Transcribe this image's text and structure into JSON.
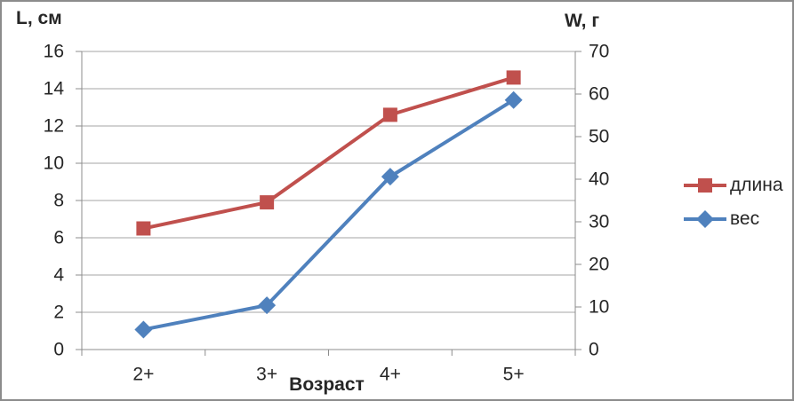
{
  "chart_data": {
    "type": "line",
    "categories": [
      "2+",
      "3+",
      "4+",
      "5+"
    ],
    "series": [
      {
        "name": "длина",
        "color": "#C0504D",
        "marker": "square",
        "axis": "left",
        "values": [
          6.5,
          7.9,
          12.6,
          14.6
        ]
      },
      {
        "name": "вес",
        "color": "#4F81BD",
        "marker": "diamond",
        "axis": "right",
        "values": [
          4.7,
          10.4,
          40.6,
          58.6
        ]
      }
    ],
    "x_axis": {
      "title": "Возраст"
    },
    "left_axis": {
      "title": "L, см",
      "min": 0,
      "max": 16,
      "step": 2,
      "ticks": [
        0,
        2,
        4,
        6,
        8,
        10,
        12,
        14,
        16
      ]
    },
    "right_axis": {
      "title": "W, г",
      "min": 0,
      "max": 70,
      "step": 10,
      "ticks": [
        0,
        10,
        20,
        30,
        40,
        50,
        60,
        70
      ]
    },
    "grid": true,
    "legend_position": "right",
    "colors": {
      "grid": "#A6A6A6",
      "axis": "#8C8C8C",
      "text": "#262626",
      "background": "#FFFFFF",
      "border": "#8C8C8C"
    }
  }
}
